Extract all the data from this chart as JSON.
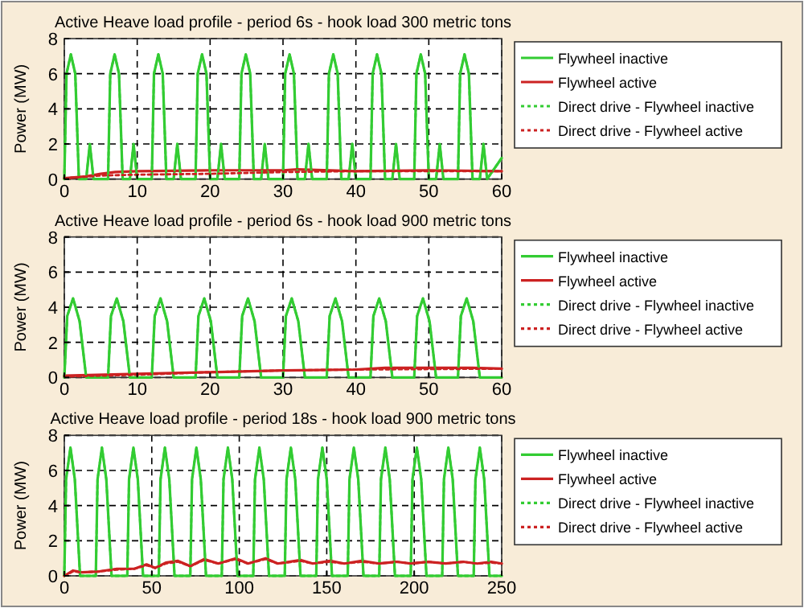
{
  "chart_data": [
    {
      "type": "line",
      "title": "Active Heave load profile - period 6s  - hook load 300 metric tons",
      "ylabel": "Power (MW)",
      "xlim": [
        0,
        60
      ],
      "ylim": [
        0,
        8
      ],
      "xticks": [
        0,
        10,
        20,
        30,
        40,
        50,
        60
      ],
      "yticks": [
        0,
        2,
        4,
        6,
        8
      ],
      "grid": true,
      "legend": "right",
      "series": [
        {
          "name": "Flywheel inactive",
          "color": "#33cc33",
          "line_style": "solid",
          "x": [
            0,
            0.3,
            0.9,
            1.5,
            2,
            3,
            3.5,
            4,
            6,
            6.3,
            6.9,
            7.5,
            8,
            9,
            9.5,
            10,
            12,
            12.3,
            12.9,
            13.5,
            14,
            15,
            15.5,
            16,
            18,
            18.3,
            18.9,
            19.5,
            20,
            21,
            21.5,
            22,
            24,
            24.3,
            24.9,
            25.5,
            26,
            27,
            27.5,
            28,
            30,
            30.3,
            30.9,
            31.5,
            32,
            33,
            33.5,
            34,
            36,
            36.3,
            36.9,
            37.5,
            38,
            39,
            39.5,
            40,
            42,
            42.3,
            42.9,
            43.5,
            44,
            45,
            45.5,
            46,
            48,
            48.3,
            48.9,
            49.5,
            50,
            51,
            51.5,
            52,
            54,
            54.3,
            54.9,
            55.5,
            56,
            57,
            57.5,
            58,
            60
          ],
          "values": [
            0,
            6,
            7.1,
            6,
            0,
            0,
            2,
            0,
            0,
            6,
            7.1,
            6,
            0,
            0,
            2,
            0,
            0,
            6,
            7.1,
            6,
            0,
            0,
            2,
            0,
            0,
            6,
            7.1,
            6,
            0,
            0,
            2,
            0,
            0,
            6,
            7.1,
            6,
            0,
            0,
            2,
            0,
            0,
            6,
            7.1,
            6,
            0,
            0,
            2,
            0,
            0,
            6,
            7.1,
            6,
            0,
            0,
            2,
            0,
            0,
            6,
            7.1,
            6,
            0,
            0,
            2,
            0,
            0,
            6,
            7.1,
            6,
            0,
            0,
            2,
            0,
            0,
            6,
            7.1,
            6,
            0,
            0,
            2,
            0,
            1.2
          ]
        },
        {
          "name": "Flywheel active",
          "color": "#cc2222",
          "line_style": "solid",
          "x": [
            0,
            3,
            5,
            7,
            10,
            20,
            30,
            32,
            40,
            50,
            60
          ],
          "values": [
            0.05,
            0.15,
            0.3,
            0.4,
            0.45,
            0.5,
            0.5,
            0.55,
            0.45,
            0.5,
            0.45
          ]
        },
        {
          "name": "Direct drive - Flywheel inactive",
          "color": "#33cc33",
          "line_style": "dotted",
          "x": [
            0,
            0.3,
            0.9,
            1.5,
            2,
            3,
            3.5,
            4,
            6,
            6.3,
            6.9,
            7.5,
            8,
            9,
            9.5,
            10,
            12,
            12.3,
            12.9,
            13.5,
            14,
            15,
            15.5,
            16,
            18,
            18.3,
            18.9,
            19.5,
            20,
            21,
            21.5,
            22,
            24,
            24.3,
            24.9,
            25.5,
            26,
            27,
            27.5,
            28,
            30,
            30.3,
            30.9,
            31.5,
            32,
            33,
            33.5,
            34,
            36,
            36.3,
            36.9,
            37.5,
            38,
            39,
            39.5,
            40,
            42,
            42.3,
            42.9,
            43.5,
            44,
            45,
            45.5,
            46,
            48,
            48.3,
            48.9,
            49.5,
            50,
            51,
            51.5,
            52,
            54,
            54.3,
            54.9,
            55.5,
            56,
            57,
            57.5,
            58,
            60
          ],
          "values": [
            0,
            6,
            7.1,
            6,
            0,
            0,
            2,
            0,
            0,
            6,
            7.1,
            6,
            0,
            0,
            2,
            0,
            0,
            6,
            7.1,
            6,
            0,
            0,
            2,
            0,
            0,
            6,
            7.1,
            6,
            0,
            0,
            2,
            0,
            0,
            6,
            7.1,
            6,
            0,
            0,
            2,
            0,
            0,
            6,
            7.1,
            6,
            0,
            0,
            2,
            0,
            0,
            6,
            7.1,
            6,
            0,
            0,
            2,
            0,
            0,
            6,
            7.1,
            6,
            0,
            0,
            2,
            0,
            0,
            6,
            7.1,
            6,
            0,
            0,
            2,
            0,
            0,
            6,
            7.1,
            6,
            0,
            0,
            2,
            0,
            1.2
          ]
        },
        {
          "name": "Direct drive - Flywheel active",
          "color": "#cc2222",
          "line_style": "dotted",
          "x": [
            0,
            5,
            10,
            20,
            30,
            40,
            60
          ],
          "values": [
            0.05,
            0.2,
            0.25,
            0.3,
            0.4,
            0.45,
            0.45
          ]
        }
      ]
    },
    {
      "type": "line",
      "title": "Active Heave load profile - period 6s  - hook load 900 metric tons",
      "ylabel": "Power (MW)",
      "xlim": [
        0,
        60
      ],
      "ylim": [
        0,
        8
      ],
      "xticks": [
        0,
        10,
        20,
        30,
        40,
        50,
        60
      ],
      "yticks": [
        0,
        2,
        4,
        6,
        8
      ],
      "grid": true,
      "legend": "right",
      "series": [
        {
          "name": "Flywheel inactive",
          "color": "#33cc33",
          "line_style": "solid",
          "x": [
            0,
            0.4,
            1.2,
            2.1,
            3,
            6,
            6.4,
            7.2,
            8.1,
            9,
            12,
            12.4,
            13.2,
            14.1,
            15,
            18,
            18.4,
            19.2,
            20.1,
            21,
            24,
            24.4,
            25.2,
            26.1,
            27,
            30,
            30.4,
            31.2,
            32.1,
            33,
            36,
            36.4,
            37.2,
            38.1,
            39,
            42,
            42.4,
            43.2,
            44.1,
            45,
            48,
            48.4,
            49.2,
            50.1,
            51,
            54,
            54.4,
            55.2,
            56.1,
            57,
            60
          ],
          "values": [
            0,
            3.5,
            4.5,
            3.2,
            0,
            0,
            3.5,
            4.5,
            3.2,
            0,
            0,
            3.5,
            4.5,
            3.2,
            0,
            0,
            3.5,
            4.5,
            3.2,
            0,
            0,
            3.5,
            4.5,
            3.2,
            0,
            0,
            3.5,
            4.5,
            3.2,
            0,
            0,
            3.5,
            4.5,
            3.2,
            0,
            0,
            3.5,
            4.5,
            3.2,
            0,
            0,
            3.5,
            4.5,
            3.2,
            0,
            0,
            3.5,
            4.5,
            3.2,
            0,
            0
          ]
        },
        {
          "name": "Flywheel active",
          "color": "#cc2222",
          "line_style": "solid",
          "x": [
            0,
            10,
            20,
            30,
            40,
            44,
            50,
            56,
            60
          ],
          "values": [
            0.1,
            0.2,
            0.3,
            0.4,
            0.45,
            0.55,
            0.55,
            0.55,
            0.5
          ]
        },
        {
          "name": "Direct drive - Flywheel inactive",
          "color": "#33cc33",
          "line_style": "dotted",
          "x": [
            0,
            0.4,
            1.2,
            2.1,
            3,
            6,
            6.4,
            7.2,
            8.1,
            9,
            12,
            12.4,
            13.2,
            14.1,
            15,
            18,
            18.4,
            19.2,
            20.1,
            21,
            24,
            24.4,
            25.2,
            26.1,
            27,
            30,
            30.4,
            31.2,
            32.1,
            33,
            36,
            36.4,
            37.2,
            38.1,
            39,
            42,
            42.4,
            43.2,
            44.1,
            45,
            48,
            48.4,
            49.2,
            50.1,
            51,
            54,
            54.4,
            55.2,
            56.1,
            57,
            60
          ],
          "values": [
            0,
            3.5,
            4.5,
            3.2,
            0,
            0,
            3.5,
            4.5,
            3.2,
            0,
            0,
            3.5,
            4.5,
            3.2,
            0,
            0,
            3.5,
            4.5,
            3.2,
            0,
            0,
            3.5,
            4.5,
            3.2,
            0,
            0,
            3.5,
            4.5,
            3.2,
            0,
            0,
            3.5,
            4.5,
            3.2,
            0,
            0,
            3.5,
            4.5,
            3.2,
            0,
            0,
            3.5,
            4.5,
            3.2,
            0,
            0,
            3.5,
            4.5,
            3.2,
            0,
            0
          ]
        },
        {
          "name": "Direct drive - Flywheel active",
          "color": "#cc2222",
          "line_style": "dotted",
          "x": [
            0,
            10,
            20,
            30,
            40,
            60
          ],
          "values": [
            0.05,
            0.15,
            0.3,
            0.4,
            0.45,
            0.5
          ]
        }
      ]
    },
    {
      "type": "line",
      "title": "Active Heave load profile - period 18s  - hook load 900 metric tons",
      "ylabel": "Power (MW)",
      "xlim": [
        0,
        250
      ],
      "ylim": [
        0,
        8
      ],
      "xticks": [
        0,
        50,
        100,
        150,
        200,
        250
      ],
      "yticks": [
        0,
        2,
        4,
        6,
        8
      ],
      "grid": true,
      "legend": "right",
      "series": [
        {
          "name": "Flywheel inactive",
          "color": "#33cc33",
          "line_style": "solid",
          "x": [
            0,
            1,
            3.5,
            6,
            9,
            18,
            19,
            21.5,
            24,
            27,
            36,
            37,
            39.5,
            42,
            45,
            54,
            55,
            57.5,
            60,
            63,
            72,
            73,
            75.5,
            78,
            81,
            90,
            91,
            93.5,
            96,
            99,
            108,
            109,
            111.5,
            114,
            117,
            126,
            127,
            129.5,
            132,
            135,
            144,
            145,
            147.5,
            150,
            153,
            162,
            163,
            165.5,
            168,
            171,
            180,
            181,
            183.5,
            186,
            189,
            198,
            199,
            201.5,
            204,
            207,
            216,
            217,
            219.5,
            222,
            225,
            234,
            235,
            237.5,
            240,
            243,
            250
          ],
          "values": [
            0,
            5.5,
            7.3,
            5.5,
            0,
            0,
            5.5,
            7.3,
            5.5,
            0,
            0,
            5.5,
            7.3,
            5.5,
            0,
            0,
            5.5,
            7.3,
            5.5,
            0,
            0,
            5.5,
            7.3,
            5.5,
            0,
            0,
            5.5,
            7.3,
            5.5,
            0,
            0,
            5.5,
            7.3,
            5.5,
            0,
            0,
            5.5,
            7.3,
            5.5,
            0,
            0,
            5.5,
            7.3,
            5.5,
            0,
            0,
            5.5,
            7.3,
            5.5,
            0,
            0,
            5.5,
            7.3,
            5.5,
            0,
            0,
            5.5,
            7.3,
            5.5,
            0,
            0,
            5.5,
            7.3,
            5.5,
            0,
            0,
            5.5,
            7.3,
            5.5,
            0,
            0
          ]
        },
        {
          "name": "Flywheel active",
          "color": "#cc2222",
          "line_style": "solid",
          "x": [
            0,
            5,
            10,
            20,
            30,
            40,
            47,
            52,
            58,
            65,
            72,
            80,
            88,
            98,
            105,
            115,
            122,
            135,
            142,
            152,
            160,
            170,
            180,
            190,
            198,
            208,
            218,
            228,
            236,
            244,
            250
          ],
          "values": [
            0,
            0.3,
            0.2,
            0.25,
            0.4,
            0.4,
            0.65,
            0.45,
            0.75,
            0.85,
            0.55,
            0.95,
            0.7,
            1,
            0.7,
            1,
            0.7,
            0.9,
            0.7,
            0.85,
            0.7,
            0.85,
            0.7,
            0.8,
            0.7,
            0.8,
            0.7,
            0.8,
            0.7,
            0.8,
            0.7
          ]
        },
        {
          "name": "Direct drive - Flywheel inactive",
          "color": "#33cc33",
          "line_style": "dotted",
          "x": [
            0,
            1,
            3.5,
            6,
            9,
            18,
            19,
            21.5,
            24,
            27,
            36,
            37,
            39.5,
            42,
            45,
            54,
            55,
            57.5,
            60,
            63,
            72,
            73,
            75.5,
            78,
            81,
            90,
            91,
            93.5,
            96,
            99,
            108,
            109,
            111.5,
            114,
            117,
            126,
            127,
            129.5,
            132,
            135,
            144,
            145,
            147.5,
            150,
            153,
            162,
            163,
            165.5,
            168,
            171,
            180,
            181,
            183.5,
            186,
            189,
            198,
            199,
            201.5,
            204,
            207,
            216,
            217,
            219.5,
            222,
            225,
            234,
            235,
            237.5,
            240,
            243,
            250
          ],
          "values": [
            0,
            5.5,
            7.3,
            5.5,
            0,
            0,
            5.5,
            7.3,
            5.5,
            0,
            0,
            5.5,
            7.3,
            5.5,
            0,
            0,
            5.5,
            7.3,
            5.5,
            0,
            0,
            5.5,
            7.3,
            5.5,
            0,
            0,
            5.5,
            7.3,
            5.5,
            0,
            0,
            5.5,
            7.3,
            5.5,
            0,
            0,
            5.5,
            7.3,
            5.5,
            0,
            0,
            5.5,
            7.3,
            5.5,
            0,
            0,
            5.5,
            7.3,
            5.5,
            0,
            0,
            5.5,
            7.3,
            5.5,
            0,
            0,
            5.5,
            7.3,
            5.5,
            0,
            0,
            5.5,
            7.3,
            5.5,
            0,
            0,
            5.5,
            7.3,
            5.5,
            0,
            0
          ]
        },
        {
          "name": "Direct drive - Flywheel active",
          "color": "#cc2222",
          "line_style": "dotted",
          "x": [
            0,
            5,
            10,
            20,
            30,
            40,
            47,
            52,
            58,
            65,
            72,
            80,
            88,
            98,
            105,
            115,
            122,
            135,
            142,
            152,
            160,
            170,
            180,
            190,
            198,
            208,
            218,
            228,
            236,
            244,
            250
          ],
          "values": [
            0,
            0.25,
            0.2,
            0.25,
            0.35,
            0.4,
            0.6,
            0.45,
            0.7,
            0.8,
            0.55,
            0.9,
            0.7,
            0.95,
            0.7,
            0.95,
            0.7,
            0.85,
            0.7,
            0.8,
            0.7,
            0.8,
            0.7,
            0.8,
            0.7,
            0.8,
            0.7,
            0.8,
            0.7,
            0.75,
            0.7
          ]
        }
      ]
    }
  ]
}
